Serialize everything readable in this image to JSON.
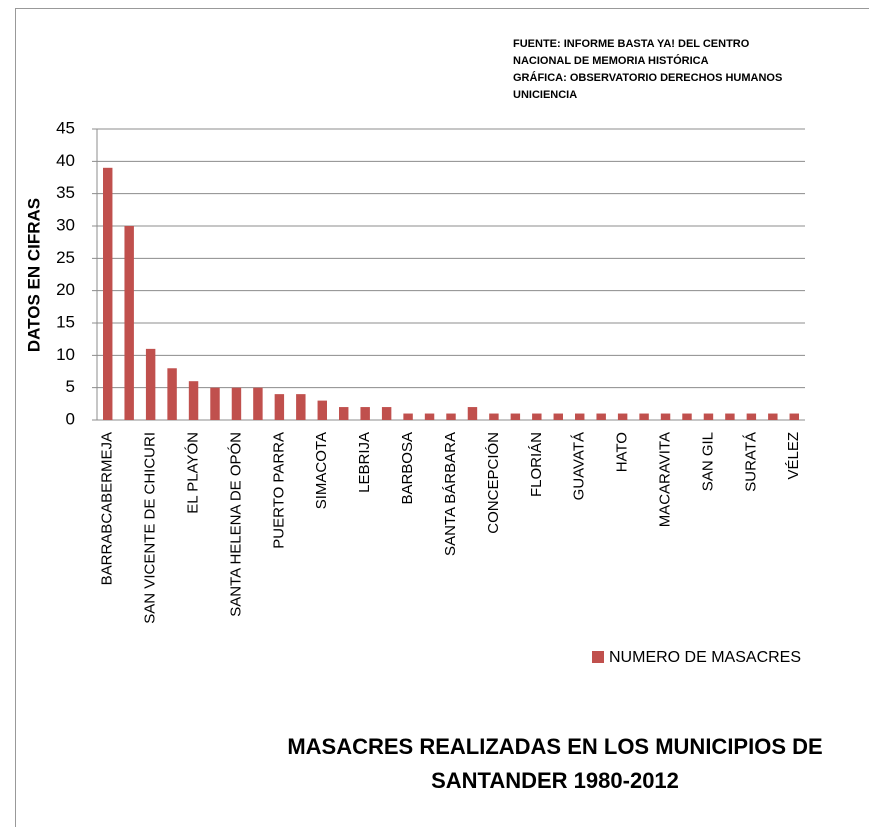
{
  "chart_data": {
    "type": "bar",
    "title": [
      "MASACRES REALIZADAS EN LOS MUNICIPIOS DE",
      "SANTANDER 1980-2012"
    ],
    "annotations": [
      "FUENTE: INFORME BASTA YA! DEL CENTRO",
      "NACIONAL DE MEMORIA HISTÓRICA",
      "GRÁFICA: OBSERVATORIO DERECHOS HUMANOS",
      "UNICIENCIA"
    ],
    "y_label": "DATOS  EN CIFRAS",
    "categories": [
      "BARRABCABERMEJA",
      null,
      "SAN VICENTE DE CHICURI",
      null,
      "EL PLAYÓN",
      null,
      "SANTA HELENA DE OPÓN",
      null,
      "PUERTO PARRA",
      null,
      "SIMACOTA",
      null,
      "LEBRIJA",
      null,
      "BARBOSA",
      null,
      "SANTA BÁRBARA",
      null,
      "CONCEPCIÓN",
      null,
      "FLORIÁN",
      null,
      "GUAVATÁ",
      null,
      "HATO",
      null,
      "MACARAVITA",
      null,
      "SAN GIL",
      null,
      "SURATÁ",
      null,
      "VÉLEZ"
    ],
    "series": [
      {
        "name": "NUMERO DE MASACRES",
        "color": "#c0504d",
        "values": [
          39,
          30,
          11,
          8,
          6,
          5,
          5,
          5,
          4,
          4,
          3,
          2,
          2,
          2,
          1,
          1,
          1,
          2,
          1,
          1,
          1,
          1,
          1,
          1,
          1,
          1,
          1,
          1,
          1,
          1,
          1,
          1,
          1
        ]
      }
    ],
    "ylim": [
      0,
      45
    ],
    "yticks": [
      0,
      5,
      10,
      15,
      20,
      25,
      30,
      35,
      40,
      45
    ],
    "grid": true,
    "legend": "right"
  }
}
